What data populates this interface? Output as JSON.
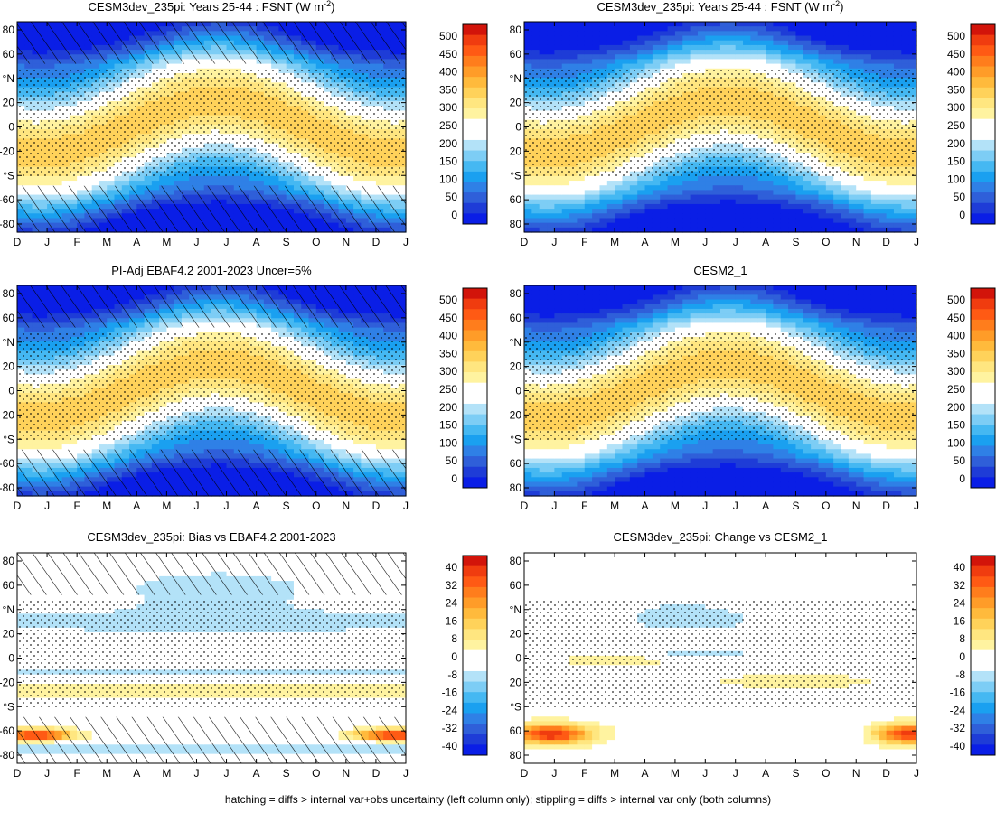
{
  "footnote": "hatching = diffs > internal var+obs uncertainty (left column only); stippling = diffs > internal var only (both columns)",
  "chart_data": [
    {
      "type": "heatmap",
      "title": "CESM3dev_235pi: Years 25-44 : FSNT (W m",
      "title_sup": "-2",
      "title_end": ")",
      "x_ticks": [
        "D",
        "J",
        "F",
        "M",
        "A",
        "M",
        "J",
        "J",
        "A",
        "S",
        "O",
        "N",
        "D",
        "J"
      ],
      "y_ticks": [
        "80",
        "60",
        "°N",
        "20",
        "0",
        "-20",
        "°S",
        "-60",
        "-80"
      ],
      "ylim": [
        -90,
        90
      ],
      "colorbar_levels": [
        "500",
        "450",
        "400",
        "350",
        "300",
        "250",
        "200",
        "150",
        "100",
        "50",
        "0"
      ],
      "field": "abs",
      "hatching": true,
      "stippling": true
    },
    {
      "type": "heatmap",
      "title": "CESM3dev_235pi: Years 25-44 : FSNT (W m",
      "title_sup": "-2",
      "title_end": ")",
      "x_ticks": [
        "D",
        "J",
        "F",
        "M",
        "A",
        "M",
        "J",
        "J",
        "A",
        "S",
        "O",
        "N",
        "D",
        "J"
      ],
      "y_ticks": [
        "80",
        "60",
        "°N",
        "20",
        "0",
        "20",
        "°S",
        "60",
        "80"
      ],
      "ylim": [
        -90,
        90
      ],
      "colorbar_levels": [
        "500",
        "450",
        "400",
        "350",
        "300",
        "250",
        "200",
        "150",
        "100",
        "50",
        "0"
      ],
      "field": "abs",
      "hatching": false,
      "stippling": true
    },
    {
      "type": "heatmap",
      "title": "PI-Adj EBAF4.2 2001-2023 Uncer=5%",
      "x_ticks": [
        "D",
        "J",
        "F",
        "M",
        "A",
        "M",
        "J",
        "J",
        "A",
        "S",
        "O",
        "N",
        "D",
        "J"
      ],
      "y_ticks": [
        "80",
        "60",
        "°N",
        "20",
        "0",
        "-20",
        "°S",
        "-60",
        "-80"
      ],
      "ylim": [
        -90,
        90
      ],
      "colorbar_levels": [
        "500",
        "450",
        "400",
        "350",
        "300",
        "250",
        "200",
        "150",
        "100",
        "50",
        "0"
      ],
      "field": "abs",
      "hatching": true,
      "stippling": true
    },
    {
      "type": "heatmap",
      "title": "CESM2_1",
      "x_ticks": [
        "D",
        "J",
        "F",
        "M",
        "A",
        "M",
        "J",
        "J",
        "A",
        "S",
        "O",
        "N",
        "D",
        "J"
      ],
      "y_ticks": [
        "80",
        "60",
        "°N",
        "20",
        "0",
        "20",
        "°S",
        "60",
        "80"
      ],
      "ylim": [
        -90,
        90
      ],
      "colorbar_levels": [
        "500",
        "450",
        "400",
        "350",
        "300",
        "250",
        "200",
        "150",
        "100",
        "50",
        "0"
      ],
      "field": "abs",
      "hatching": false,
      "stippling": true
    },
    {
      "type": "heatmap",
      "title": "CESM3dev_235pi: Bias vs EBAF4.2 2001-2023",
      "x_ticks": [
        "D",
        "J",
        "F",
        "M",
        "A",
        "M",
        "J",
        "J",
        "A",
        "S",
        "O",
        "N",
        "D",
        "J"
      ],
      "y_ticks": [
        "80",
        "60",
        "°N",
        "20",
        "0",
        "-20",
        "°S",
        "-60",
        "-80"
      ],
      "ylim": [
        -90,
        90
      ],
      "colorbar_levels": [
        "40",
        "32",
        "24",
        "16",
        "8",
        "0",
        "-8",
        "-16",
        "-24",
        "-32",
        "-40"
      ],
      "field": "bias",
      "hatching": true,
      "stippling": true
    },
    {
      "type": "heatmap",
      "title": "CESM3dev_235pi: Change vs CESM2_1",
      "x_ticks": [
        "D",
        "J",
        "F",
        "M",
        "A",
        "M",
        "J",
        "J",
        "A",
        "S",
        "O",
        "N",
        "D",
        "J"
      ],
      "y_ticks": [
        "80",
        "60",
        "°N",
        "20",
        "0",
        "20",
        "°S",
        "60",
        "80"
      ],
      "ylim": [
        -90,
        90
      ],
      "colorbar_levels": [
        "40",
        "32",
        "24",
        "16",
        "8",
        "0",
        "-8",
        "-16",
        "-24",
        "-32",
        "-40"
      ],
      "field": "change",
      "hatching": false,
      "stippling": true
    }
  ],
  "colors": {
    "scale": [
      "#0a1ee6",
      "#1e3cd7",
      "#2f5fd9",
      "#2f80e6",
      "#1aa0f0",
      "#45b8f2",
      "#7dcdf5",
      "#b3e2f8",
      "#ffffff",
      "#ffffff",
      "#fff3a0",
      "#ffe680",
      "#ffd25a",
      "#ffba3c",
      "#ff9c28",
      "#ff7d1c",
      "#ff5a14",
      "#f03c0f",
      "#d2140a"
    ]
  }
}
